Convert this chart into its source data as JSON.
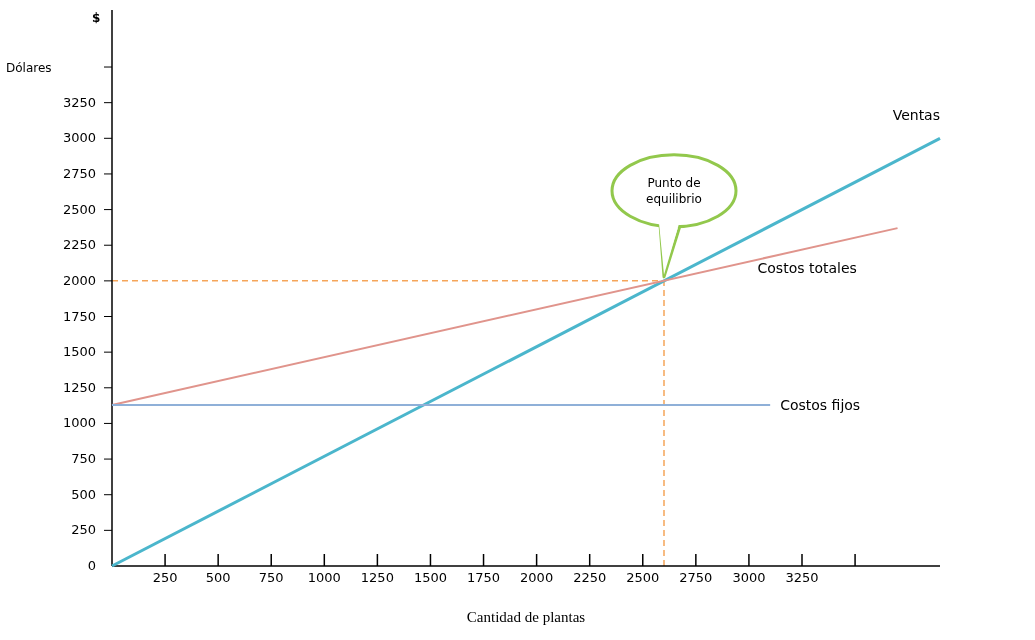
{
  "chart_data": {
    "type": "line",
    "xlabel": "Cantidad de plantas",
    "ylabel": "Dólares",
    "xlim": [
      0,
      3900
    ],
    "ylim": [
      0,
      3900
    ],
    "xticks": [
      250,
      500,
      750,
      1000,
      1250,
      1500,
      1750,
      2000,
      2250,
      2500,
      2750,
      3000,
      3250,
      {
        "value": 3500,
        "label": null
      }
    ],
    "yticks": [
      0,
      250,
      500,
      750,
      1000,
      1250,
      1500,
      1750,
      2000,
      2250,
      2500,
      2750,
      3000,
      3250,
      {
        "value": 3500,
        "label": null
      }
    ],
    "grid": false,
    "marker": "none",
    "line_style": "solid",
    "series": [
      {
        "name": "Ventas",
        "color": "#4bb6cc",
        "x": [
          0,
          3900
        ],
        "values": [
          0,
          3000
        ]
      },
      {
        "name": "Costos totales",
        "color": "#e0948c",
        "x": [
          0,
          3700
        ],
        "values": [
          1130,
          2370
        ]
      },
      {
        "name": "Costos fijos",
        "color": "#8fb0d8",
        "x": [
          0,
          3100
        ],
        "values": [
          1130,
          1130
        ]
      }
    ],
    "ref_lines": [
      {
        "axis": "y",
        "value": 2000,
        "color": "#f5a55a",
        "line_style": "dashed"
      },
      {
        "axis": "x",
        "value": 2600,
        "color": "#f5a55a",
        "line_style": "dashed"
      }
    ],
    "annotations": [
      "$",
      "Punto de equilibrio"
    ]
  }
}
